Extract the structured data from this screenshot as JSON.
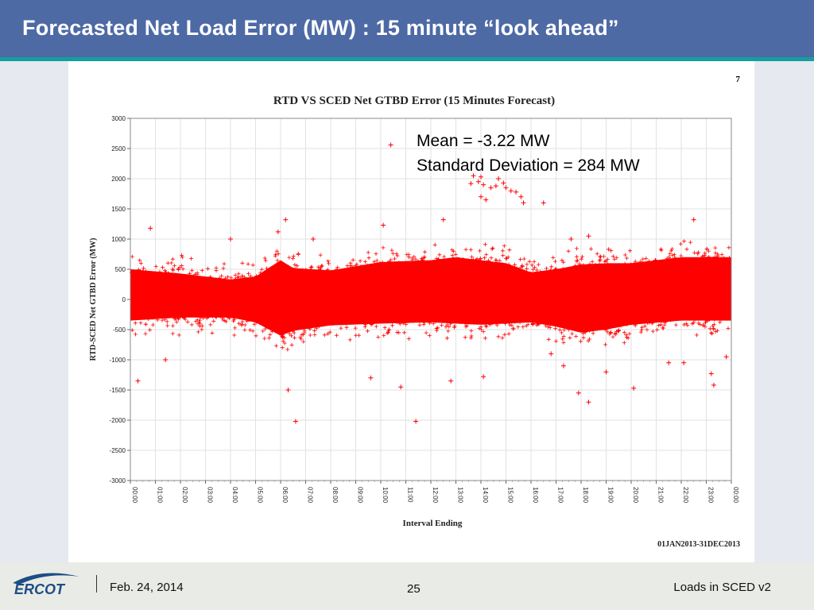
{
  "slide": {
    "title": "Forecasted Net Load Error (MW) : 15 minute “look ahead”",
    "page_marker": "7",
    "footer_date": "Feb. 24, 2014",
    "footer_page": "25",
    "footer_right": "Loads in SCED v2",
    "logo_text": "ERCOT"
  },
  "stats": {
    "mean": "Mean = -3.22 MW",
    "std": "Standard Deviation = 284 MW"
  },
  "chart_data": {
    "type": "scatter",
    "title": "RTD VS SCED Net GTBD Error (15 Minutes Forecast)",
    "xlabel": "Interval Ending",
    "ylabel": "RTD-SCED Net GTBD Error (MW)",
    "date_range": "01JAN2013-31DEC2013",
    "ylim": [
      -3000,
      3000
    ],
    "yticks": [
      3000,
      2500,
      2000,
      1500,
      1000,
      500,
      0,
      -500,
      -1000,
      -1500,
      -2000,
      -2500,
      -3000
    ],
    "xticks": [
      "00:00",
      "01:00",
      "02:00",
      "03:00",
      "04:00",
      "05:00",
      "06:00",
      "07:00",
      "08:00",
      "09:00",
      "10:00",
      "11:00",
      "12:00",
      "13:00",
      "14:00",
      "15:00",
      "16:00",
      "17:00",
      "18:00",
      "19:00",
      "20:00",
      "21:00",
      "22:00",
      "23:00",
      "00:00"
    ],
    "x_range_hours": [
      0,
      24
    ],
    "marker": "+",
    "color": "#ff0000",
    "grid": true,
    "band_profile_hours": [
      0,
      2,
      4,
      5,
      6,
      6.5,
      8,
      10,
      12,
      13,
      14,
      15,
      16,
      17,
      18,
      19,
      20,
      22,
      24
    ],
    "band_upper_mw": [
      500,
      430,
      330,
      380,
      650,
      520,
      480,
      620,
      650,
      700,
      650,
      600,
      450,
      500,
      580,
      600,
      600,
      700,
      700
    ],
    "band_lower_mw": [
      -350,
      -300,
      -300,
      -380,
      -600,
      -520,
      -430,
      -400,
      -380,
      -400,
      -420,
      -400,
      -380,
      -450,
      -550,
      -500,
      -420,
      -350,
      -350
    ],
    "series": [
      {
        "points": [
          [
            10.4,
            2560
          ],
          [
            13.7,
            2050
          ],
          [
            13.9,
            1950
          ],
          [
            14.0,
            2030
          ],
          [
            13.6,
            1920
          ],
          [
            14.1,
            1900
          ],
          [
            14.4,
            1850
          ],
          [
            14.6,
            1880
          ],
          [
            14.7,
            2000
          ],
          [
            14.9,
            1930
          ],
          [
            15.0,
            1850
          ],
          [
            15.2,
            1800
          ],
          [
            15.4,
            1780
          ],
          [
            15.6,
            1700
          ],
          [
            14.0,
            1700
          ],
          [
            15.7,
            1600
          ],
          [
            14.2,
            1650
          ],
          [
            16.5,
            1600
          ],
          [
            6.2,
            1320
          ],
          [
            12.5,
            1320
          ],
          [
            22.5,
            1320
          ],
          [
            0.8,
            1180
          ],
          [
            10.1,
            1230
          ],
          [
            5.9,
            1120
          ],
          [
            4.0,
            1000
          ],
          [
            7.3,
            1000
          ],
          [
            17.6,
            1000
          ],
          [
            18.3,
            1050
          ],
          [
            0.3,
            -1350
          ],
          [
            1.4,
            -1000
          ],
          [
            6.3,
            -1500
          ],
          [
            6.6,
            -2020
          ],
          [
            11.4,
            -2020
          ],
          [
            10.8,
            -1450
          ],
          [
            9.6,
            -1300
          ],
          [
            12.8,
            -1350
          ],
          [
            14.1,
            -1280
          ],
          [
            17.9,
            -1550
          ],
          [
            18.3,
            -1700
          ],
          [
            20.1,
            -1470
          ],
          [
            23.2,
            -1230
          ],
          [
            23.3,
            -1420
          ],
          [
            23.8,
            -950
          ],
          [
            21.5,
            -1050
          ],
          [
            22.1,
            -1050
          ],
          [
            19.0,
            -1200
          ],
          [
            17.3,
            -1100
          ],
          [
            16.8,
            -900
          ]
        ]
      }
    ]
  }
}
